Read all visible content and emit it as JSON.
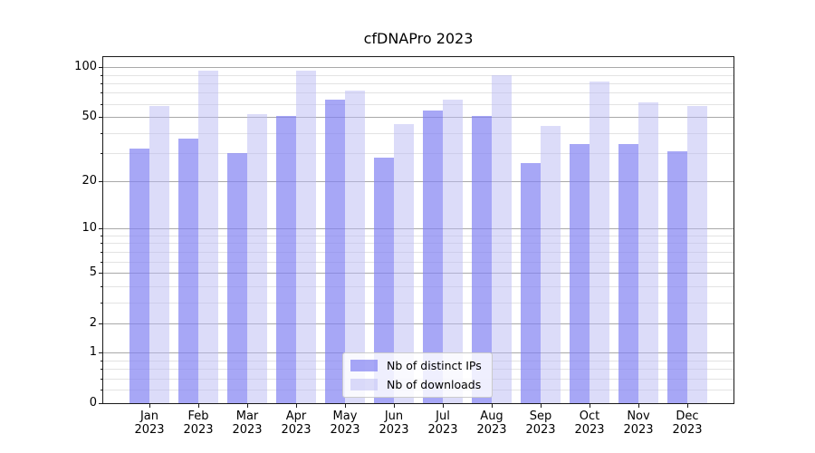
{
  "title": "cfDNAPro 2023",
  "chart_data": {
    "type": "bar",
    "title": "cfDNAPro 2023",
    "categories": [
      "Jan 2023",
      "Feb 2023",
      "Mar 2023",
      "Apr 2023",
      "May 2023",
      "Jun 2023",
      "Jul 2023",
      "Aug 2023",
      "Sep 2023",
      "Oct 2023",
      "Nov 2023",
      "Dec 2023"
    ],
    "series": [
      {
        "name": "Nb of distinct IPs",
        "values": [
          32,
          37,
          30,
          51,
          64,
          28,
          55,
          51,
          26,
          34,
          34,
          31
        ],
        "color": "rgba(130,130,242,0.7)",
        "color_hex": "#a8a8f0"
      },
      {
        "name": "Nb of downloads",
        "values": [
          58,
          95,
          52,
          95,
          72,
          45,
          64,
          90,
          44,
          82,
          61,
          58
        ],
        "color": "rgba(185,185,243,0.5)",
        "color_hex": "#dcdcf8"
      }
    ],
    "xlabel": "",
    "ylabel": "",
    "yscale": "log1p",
    "ylim": [
      0,
      115
    ],
    "yticks": [
      0,
      1,
      2,
      5,
      10,
      20,
      50,
      100
    ],
    "yticks_minor": [
      0.2,
      0.4,
      0.6,
      0.8,
      3,
      4,
      6,
      7,
      8,
      9,
      30,
      40,
      60,
      70,
      80,
      90
    ],
    "grid": true,
    "grid_major_color": "#a9a9a9",
    "grid_minor_color": "#e3e3e3",
    "legend_position": "lower center inside plot"
  },
  "legend": {
    "items": [
      {
        "label": "Nb of distinct IPs"
      },
      {
        "label": "Nb of downloads"
      }
    ]
  }
}
